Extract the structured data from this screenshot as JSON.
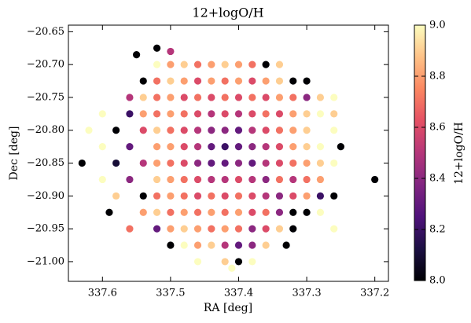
{
  "chart_data": {
    "type": "scatter",
    "title": "12+logO/H",
    "xlabel": "RA [deg]",
    "ylabel": "Dec [deg]",
    "colorbar_label": "12+logO/H",
    "xlim": [
      337.65,
      337.18
    ],
    "ylim": [
      -21.03,
      -20.64
    ],
    "xticks": [
      337.6,
      337.5,
      337.4,
      337.3,
      337.2
    ],
    "yticks": [
      {
        "value": -20.65,
        "label": "−20.65"
      },
      {
        "value": -20.7,
        "label": "−20.70"
      },
      {
        "value": -20.75,
        "label": "−20.75"
      },
      {
        "value": -20.8,
        "label": "−20.80"
      },
      {
        "value": -20.85,
        "label": "−20.85"
      },
      {
        "value": -20.9,
        "label": "−20.90"
      },
      {
        "value": -20.95,
        "label": "−20.95"
      },
      {
        "value": -21.0,
        "label": "−21.00"
      }
    ],
    "clim": [
      8.0,
      9.0
    ],
    "cticks": [
      {
        "value": 8.0,
        "label": "8.0"
      },
      8.2,
      8.4,
      8.6,
      8.8,
      {
        "value": 9.0,
        "label": "9.0"
      }
    ],
    "colormap": [
      "#000004",
      "#1c1044",
      "#4f127b",
      "#812581",
      "#b5367a",
      "#e55064",
      "#fb8761",
      "#fec287",
      "#fcfdbf"
    ],
    "x": [
      337.52,
      337.5,
      337.48,
      337.46,
      337.44,
      337.42,
      337.4,
      337.38,
      337.36,
      337.34,
      337.54,
      337.52,
      337.5,
      337.48,
      337.46,
      337.44,
      337.42,
      337.4,
      337.38,
      337.36,
      337.34,
      337.32,
      337.3,
      337.56,
      337.54,
      337.52,
      337.5,
      337.48,
      337.46,
      337.44,
      337.42,
      337.4,
      337.38,
      337.36,
      337.34,
      337.32,
      337.3,
      337.28,
      337.26,
      337.6,
      337.56,
      337.54,
      337.52,
      337.5,
      337.48,
      337.46,
      337.44,
      337.42,
      337.4,
      337.38,
      337.36,
      337.34,
      337.32,
      337.3,
      337.28,
      337.26,
      337.62,
      337.58,
      337.54,
      337.52,
      337.5,
      337.48,
      337.46,
      337.44,
      337.42,
      337.4,
      337.38,
      337.36,
      337.34,
      337.32,
      337.3,
      337.26,
      337.6,
      337.56,
      337.52,
      337.5,
      337.48,
      337.46,
      337.44,
      337.42,
      337.4,
      337.38,
      337.36,
      337.34,
      337.32,
      337.3,
      337.28,
      337.25,
      337.63,
      337.58,
      337.54,
      337.52,
      337.5,
      337.48,
      337.46,
      337.44,
      337.42,
      337.4,
      337.38,
      337.36,
      337.34,
      337.32,
      337.3,
      337.28,
      337.26,
      337.6,
      337.56,
      337.52,
      337.5,
      337.48,
      337.46,
      337.44,
      337.42,
      337.4,
      337.38,
      337.36,
      337.34,
      337.32,
      337.3,
      337.28,
      337.2,
      337.58,
      337.54,
      337.52,
      337.5,
      337.48,
      337.46,
      337.44,
      337.42,
      337.4,
      337.38,
      337.36,
      337.34,
      337.32,
      337.3,
      337.28,
      337.26,
      337.59,
      337.54,
      337.52,
      337.5,
      337.48,
      337.46,
      337.44,
      337.42,
      337.4,
      337.38,
      337.36,
      337.34,
      337.32,
      337.3,
      337.28,
      337.56,
      337.52,
      337.5,
      337.48,
      337.46,
      337.44,
      337.42,
      337.4,
      337.38,
      337.36,
      337.34,
      337.32,
      337.26,
      337.5,
      337.48,
      337.46,
      337.44,
      337.42,
      337.4,
      337.38,
      337.36,
      337.33,
      337.46,
      337.42,
      337.4,
      337.38,
      337.52,
      337.55,
      337.5,
      337.41
    ],
    "y": [
      -20.7,
      -20.7,
      -20.7,
      -20.7,
      -20.7,
      -20.7,
      -20.7,
      -20.7,
      -20.7,
      -20.7,
      -20.725,
      -20.725,
      -20.725,
      -20.725,
      -20.725,
      -20.725,
      -20.725,
      -20.725,
      -20.725,
      -20.725,
      -20.725,
      -20.725,
      -20.725,
      -20.75,
      -20.75,
      -20.75,
      -20.75,
      -20.75,
      -20.75,
      -20.75,
      -20.75,
      -20.75,
      -20.75,
      -20.75,
      -20.75,
      -20.75,
      -20.75,
      -20.75,
      -20.75,
      -20.775,
      -20.775,
      -20.775,
      -20.775,
      -20.775,
      -20.775,
      -20.775,
      -20.775,
      -20.775,
      -20.775,
      -20.775,
      -20.775,
      -20.775,
      -20.775,
      -20.775,
      -20.775,
      -20.775,
      -20.8,
      -20.8,
      -20.8,
      -20.8,
      -20.8,
      -20.8,
      -20.8,
      -20.8,
      -20.8,
      -20.8,
      -20.8,
      -20.8,
      -20.8,
      -20.8,
      -20.8,
      -20.8,
      -20.825,
      -20.825,
      -20.825,
      -20.825,
      -20.825,
      -20.825,
      -20.825,
      -20.825,
      -20.825,
      -20.825,
      -20.825,
      -20.825,
      -20.825,
      -20.825,
      -20.825,
      -20.825,
      -20.85,
      -20.85,
      -20.85,
      -20.85,
      -20.85,
      -20.85,
      -20.85,
      -20.85,
      -20.85,
      -20.85,
      -20.85,
      -20.85,
      -20.85,
      -20.85,
      -20.85,
      -20.85,
      -20.85,
      -20.875,
      -20.875,
      -20.875,
      -20.875,
      -20.875,
      -20.875,
      -20.875,
      -20.875,
      -20.875,
      -20.875,
      -20.875,
      -20.875,
      -20.875,
      -20.875,
      -20.875,
      -20.875,
      -20.9,
      -20.9,
      -20.9,
      -20.9,
      -20.9,
      -20.9,
      -20.9,
      -20.9,
      -20.9,
      -20.9,
      -20.9,
      -20.9,
      -20.9,
      -20.9,
      -20.9,
      -20.9,
      -20.925,
      -20.925,
      -20.925,
      -20.925,
      -20.925,
      -20.925,
      -20.925,
      -20.925,
      -20.925,
      -20.925,
      -20.925,
      -20.925,
      -20.925,
      -20.925,
      -20.925,
      -20.95,
      -20.95,
      -20.95,
      -20.95,
      -20.95,
      -20.95,
      -20.95,
      -20.95,
      -20.95,
      -20.95,
      -20.95,
      -20.95,
      -20.95,
      -20.975,
      -20.975,
      -20.975,
      -20.975,
      -20.975,
      -20.975,
      -20.975,
      -20.975,
      -20.975,
      -21.0,
      -21.0,
      -21.0,
      -21.0,
      -20.675,
      -20.685,
      -20.68,
      -21.01
    ],
    "c": [
      9.0,
      8.8,
      8.9,
      8.7,
      8.8,
      8.9,
      8.8,
      8.7,
      8.0,
      8.9,
      8.0,
      8.7,
      8.9,
      8.8,
      8.6,
      8.8,
      8.7,
      8.8,
      8.6,
      8.8,
      8.9,
      8.0,
      8.0,
      8.5,
      8.9,
      8.7,
      8.8,
      8.6,
      8.7,
      8.6,
      8.7,
      8.6,
      8.7,
      8.6,
      8.8,
      8.7,
      8.4,
      8.9,
      9.0,
      9.0,
      8.2,
      8.8,
      8.7,
      8.8,
      8.7,
      8.6,
      8.5,
      8.6,
      8.5,
      8.6,
      8.7,
      8.6,
      8.8,
      8.9,
      9.0,
      8.9,
      9.0,
      8.0,
      8.6,
      8.9,
      8.7,
      8.6,
      8.5,
      8.4,
      8.4,
      8.3,
      8.5,
      8.6,
      8.7,
      8.8,
      8.9,
      9.0,
      9.0,
      8.3,
      8.8,
      8.8,
      8.6,
      8.5,
      8.3,
      8.2,
      8.3,
      8.4,
      8.5,
      8.6,
      8.8,
      8.9,
      9.0,
      8.0,
      8.0,
      8.1,
      8.5,
      8.8,
      8.7,
      8.6,
      8.4,
      8.3,
      8.3,
      8.4,
      8.3,
      8.5,
      8.6,
      8.7,
      8.8,
      8.9,
      9.0,
      9.0,
      8.4,
      8.9,
      8.8,
      8.7,
      8.6,
      8.5,
      8.5,
      8.6,
      8.5,
      8.4,
      8.7,
      8.5,
      8.7,
      8.8,
      8.0,
      8.9,
      8.0,
      8.7,
      8.8,
      8.7,
      8.6,
      8.7,
      8.6,
      8.7,
      8.6,
      8.5,
      8.4,
      8.6,
      8.8,
      8.2,
      8.0,
      8.0,
      8.8,
      8.9,
      8.7,
      8.8,
      8.7,
      8.8,
      8.7,
      8.8,
      8.6,
      8.7,
      8.4,
      8.0,
      8.0,
      9.0,
      8.7,
      8.3,
      8.8,
      8.9,
      8.8,
      8.7,
      8.8,
      8.7,
      8.4,
      8.6,
      8.9,
      8.0,
      9.0,
      8.0,
      9.0,
      8.8,
      8.9,
      8.5,
      8.3,
      8.4,
      8.9,
      8.0,
      9.0,
      8.9,
      8.0,
      9.0,
      8.0,
      8.0,
      8.5,
      9.0
    ]
  }
}
